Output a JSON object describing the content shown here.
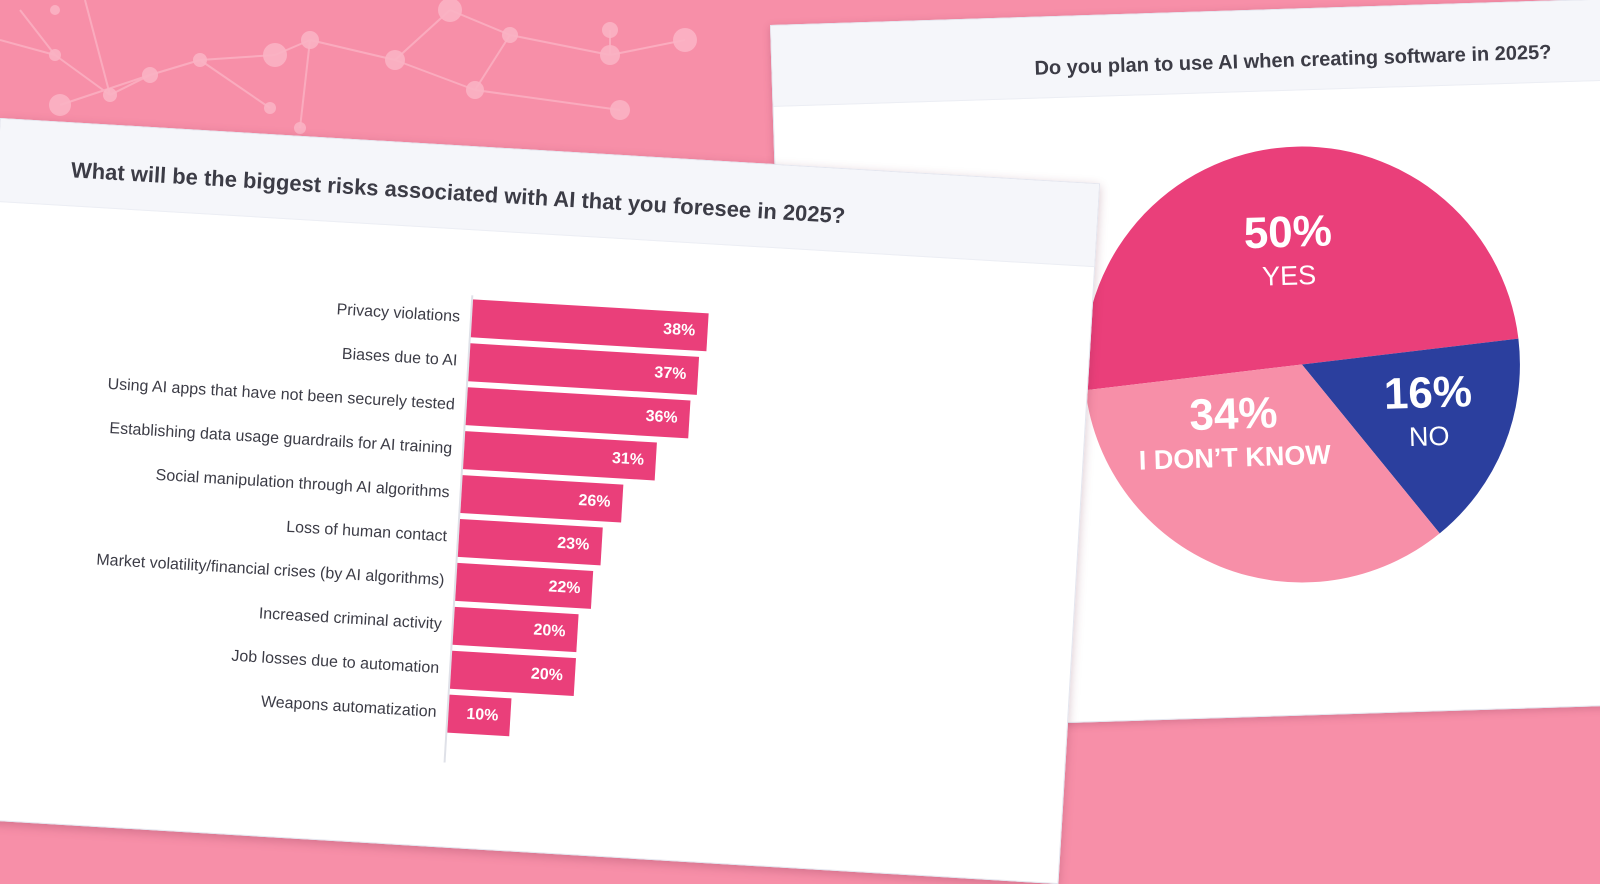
{
  "colors": {
    "background": "#f78fa8",
    "bar": "#ea3f7a",
    "pie_yes": "#ea3f7a",
    "pie_dont_know": "#f78fa8",
    "pie_no": "#2b3f9e"
  },
  "chart_data": [
    {
      "type": "pie",
      "title": "Do you plan to use AI when creating software in 2025?",
      "slices": [
        {
          "name": "YES",
          "value": 50,
          "label": "50%",
          "color": "#ea3f7a"
        },
        {
          "name": "NO",
          "value": 16,
          "label": "16%",
          "color": "#2b3f9e"
        },
        {
          "name": "I DON’T KNOW",
          "value": 34,
          "label": "34%",
          "color": "#f78fa8"
        }
      ]
    },
    {
      "type": "bar",
      "orientation": "horizontal",
      "title": "What will be the biggest risks associated with AI that you foresee in 2025?",
      "categories": [
        "Privacy violations",
        "Biases due to AI",
        "Using AI apps that have not been securely tested",
        "Establishing data usage guardrails for AI training",
        "Social manipulation through AI algorithms",
        "Loss of human contact",
        "Market volatility/financial crises (by AI algorithms)",
        "Increased criminal activity",
        "Job losses due to automation",
        "Weapons automatization"
      ],
      "values": [
        38,
        37,
        36,
        31,
        26,
        23,
        22,
        20,
        20,
        10
      ],
      "value_labels": [
        "38%",
        "37%",
        "36%",
        "31%",
        "26%",
        "23%",
        "22%",
        "20%",
        "20%",
        "10%"
      ],
      "xlim": [
        0,
        100
      ]
    }
  ]
}
